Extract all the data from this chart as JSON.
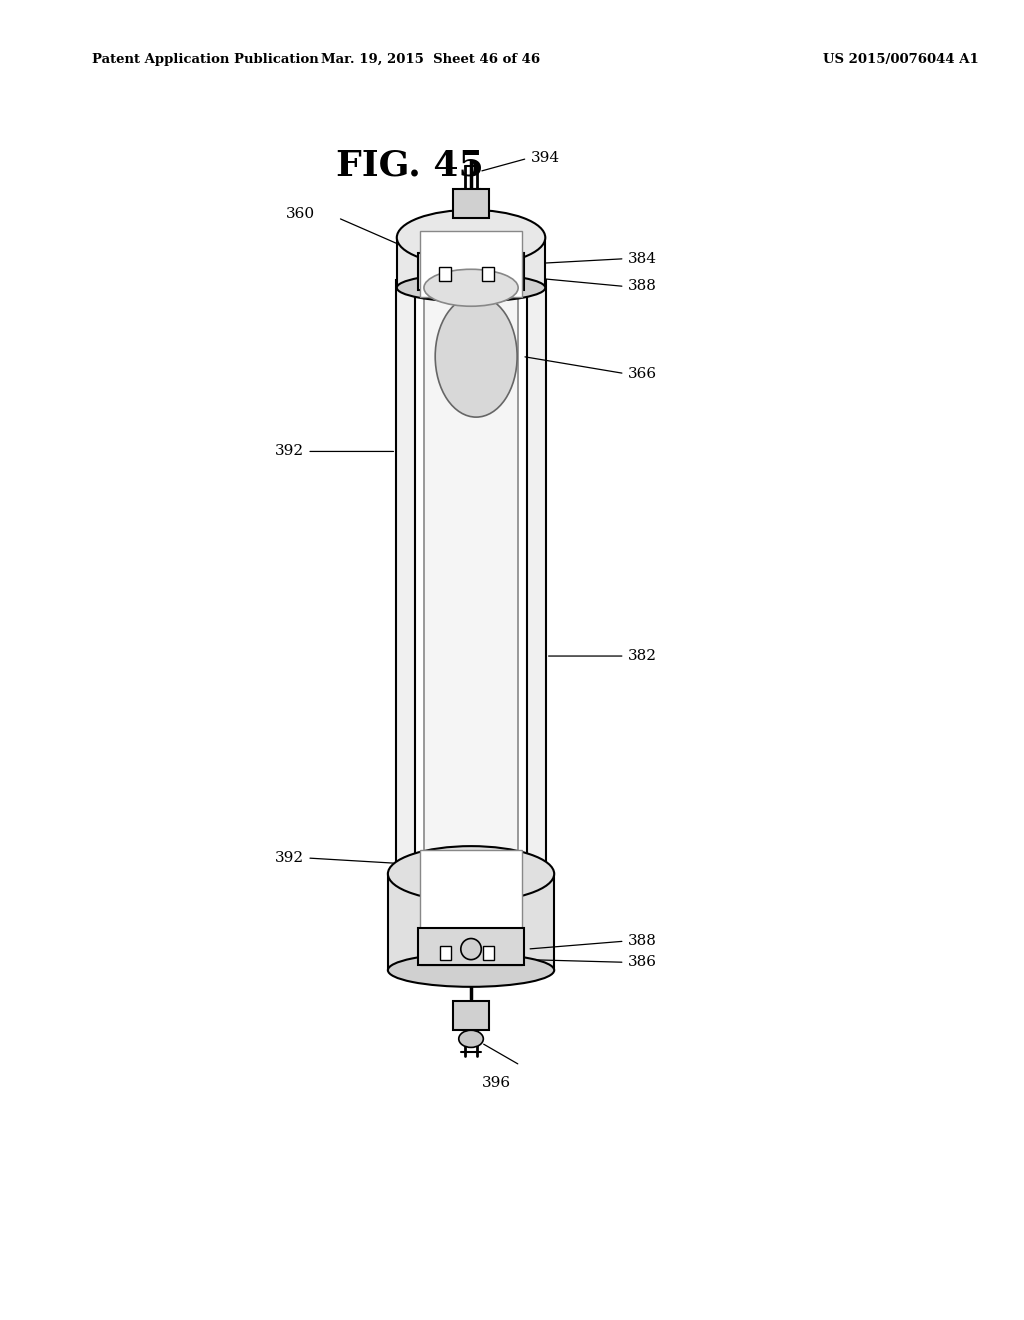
{
  "bg_color": "#ffffff",
  "header_left": "Patent Application Publication",
  "header_mid": "Mar. 19, 2015  Sheet 46 of 46",
  "header_right": "US 2015/0076044 A1",
  "fig_label": "FIG. 45"
}
